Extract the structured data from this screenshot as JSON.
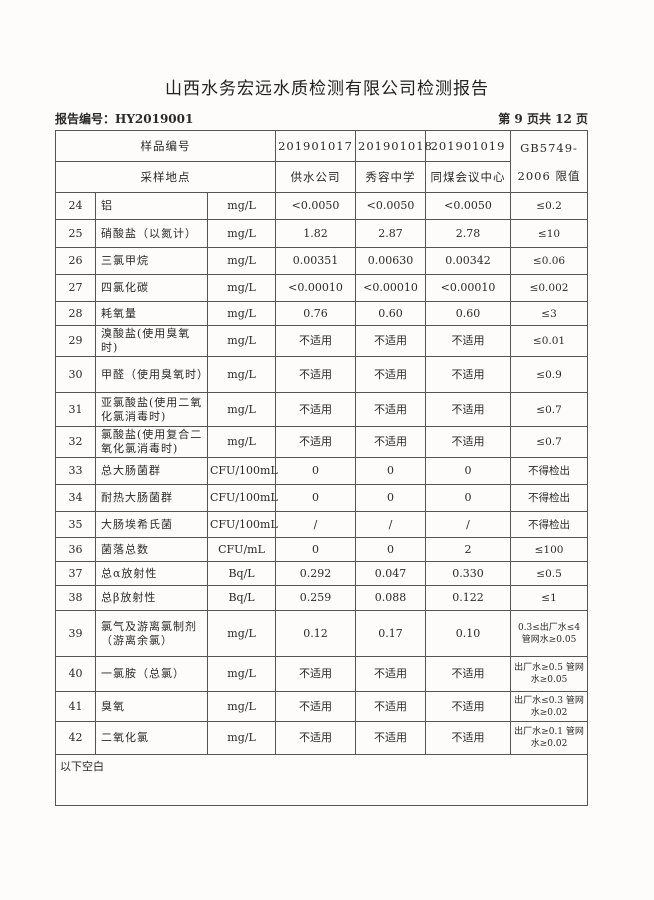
{
  "title": "山西水务宏远水质检测有限公司检测报告",
  "report_no": "报告编号：HY2019001",
  "page": "第 9 页共 12 页",
  "header": {
    "sample_no_label": "样品编号",
    "site_label": "采样地点",
    "samples": [
      {
        "no": "201901017",
        "site": "供水公司"
      },
      {
        "no": "201901018",
        "site": "秀容中学"
      },
      {
        "no": "201901019",
        "site": "同煤会议中心"
      }
    ],
    "standard_line1": "GB5749-",
    "standard_line2": "2006 限值"
  },
  "rows": [
    {
      "n": "24",
      "item": "铝",
      "unit": "mg/L",
      "v": [
        "<0.0050",
        "<0.0050",
        "<0.0050"
      ],
      "limit": "≤0.2"
    },
    {
      "n": "25",
      "item": "硝酸盐（以氮计）",
      "unit": "mg/L",
      "v": [
        "1.82",
        "2.87",
        "2.78"
      ],
      "limit": "≤10"
    },
    {
      "n": "26",
      "item": "三氯甲烷",
      "unit": "mg/L",
      "v": [
        "0.00351",
        "0.00630",
        "0.00342"
      ],
      "limit": "≤0.06"
    },
    {
      "n": "27",
      "item": "四氯化碳",
      "unit": "mg/L",
      "v": [
        "<0.00010",
        "<0.00010",
        "<0.00010"
      ],
      "limit": "≤0.002"
    },
    {
      "n": "28",
      "item": "耗氧量",
      "unit": "mg/L",
      "v": [
        "0.76",
        "0.60",
        "0.60"
      ],
      "limit": "≤3"
    },
    {
      "n": "29",
      "item": "溴酸盐(使用臭氧时)",
      "unit": "mg/L",
      "v": [
        "不适用",
        "不适用",
        "不适用"
      ],
      "limit": "≤0.01"
    },
    {
      "n": "30",
      "item": "甲醛（使用臭氧时）",
      "unit": "mg/L",
      "v": [
        "不适用",
        "不适用",
        "不适用"
      ],
      "limit": "≤0.9"
    },
    {
      "n": "31",
      "item": "亚氯酸盐(使用二氧化氯消毒时)",
      "unit": "mg/L",
      "v": [
        "不适用",
        "不适用",
        "不适用"
      ],
      "limit": "≤0.7"
    },
    {
      "n": "32",
      "item": "氯酸盐(使用复合二氧化氯消毒时)",
      "unit": "mg/L",
      "v": [
        "不适用",
        "不适用",
        "不适用"
      ],
      "limit": "≤0.7"
    },
    {
      "n": "33",
      "item": "总大肠菌群",
      "unit": "CFU/100mL",
      "v": [
        "0",
        "0",
        "0"
      ],
      "limit": "不得检出"
    },
    {
      "n": "34",
      "item": "耐热大肠菌群",
      "unit": "CFU/100mL",
      "v": [
        "0",
        "0",
        "0"
      ],
      "limit": "不得检出"
    },
    {
      "n": "35",
      "item": "大肠埃希氏菌",
      "unit": "CFU/100mL",
      "v": [
        "/",
        "/",
        "/"
      ],
      "limit": "不得检出"
    },
    {
      "n": "36",
      "item": "菌落总数",
      "unit": "CFU/mL",
      "v": [
        "0",
        "0",
        "2"
      ],
      "limit": "≤100"
    },
    {
      "n": "37",
      "item": "总α放射性",
      "unit": "Bq/L",
      "v": [
        "0.292",
        "0.047",
        "0.330"
      ],
      "limit": "≤0.5"
    },
    {
      "n": "38",
      "item": "总β放射性",
      "unit": "Bq/L",
      "v": [
        "0.259",
        "0.088",
        "0.122"
      ],
      "limit": "≤1"
    },
    {
      "n": "39",
      "item": "氯气及游离氯制剂（游离余氯）",
      "unit": "mg/L",
      "v": [
        "0.12",
        "0.17",
        "0.10"
      ],
      "limit": "0.3≤出厂水≤4 管网水≥0.05"
    },
    {
      "n": "40",
      "item": "一氯胺（总氯）",
      "unit": "mg/L",
      "v": [
        "不适用",
        "不适用",
        "不适用"
      ],
      "limit": "出厂水≥0.5 管网水≥0.05"
    },
    {
      "n": "41",
      "item": "臭氧",
      "unit": "mg/L",
      "v": [
        "不适用",
        "不适用",
        "不适用"
      ],
      "limit": "出厂水≤0.3 管网水≥0.02"
    },
    {
      "n": "42",
      "item": "二氧化氯",
      "unit": "mg/L",
      "v": [
        "不适用",
        "不适用",
        "不适用"
      ],
      "limit": "出厂水≥0.1 管网水≥0.02"
    }
  ],
  "footer_note": "以下空白"
}
